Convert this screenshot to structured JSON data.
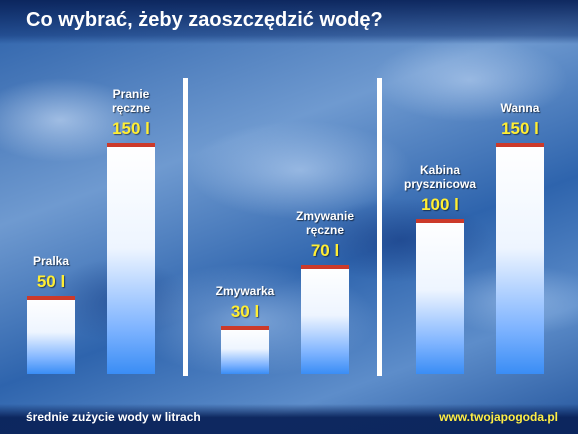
{
  "title": "Co wybrać, żeby zaoszczędzić wodę?",
  "footer": {
    "caption": "średnie zużycie wody w litrach",
    "source": "www.twojapogoda.pl"
  },
  "colors": {
    "value_label": "#ffee33",
    "cap": "#cc3a2a",
    "bar_top": "#ffffff",
    "bar_bottom": "#3a8df5"
  },
  "chart_data": {
    "type": "bar",
    "categories": [
      "Pralka",
      "Pranie\nręczne",
      "Zmywarka",
      "Zmywanie\nręczne",
      "Kabina\nprysznicowa",
      "Wanna"
    ],
    "values": [
      50,
      150,
      30,
      70,
      100,
      150
    ],
    "value_labels": [
      "50 l",
      "150 l",
      "30 l",
      "70 l",
      "100 l",
      "150 l"
    ],
    "groups": [
      {
        "members": [
          "Pralka",
          "Pranie\nręczne"
        ]
      },
      {
        "members": [
          "Zmywarka",
          "Zmywanie\nręczne"
        ]
      },
      {
        "members": [
          "Kabina\nprysznicowa",
          "Wanna"
        ]
      }
    ],
    "grid": false,
    "legend": "none"
  }
}
